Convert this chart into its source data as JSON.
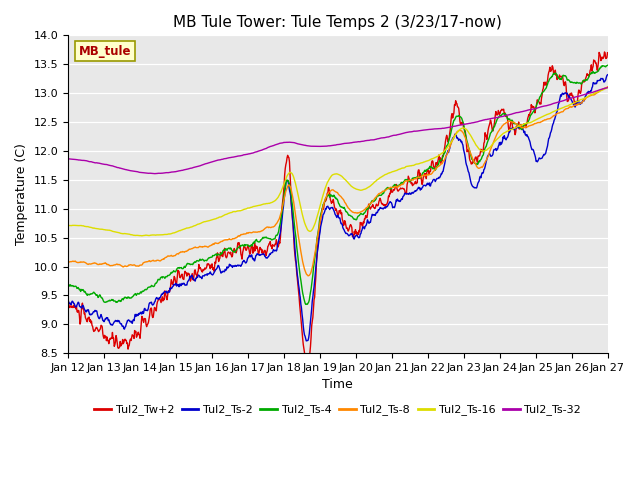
{
  "title": "MB Tule Tower: Tule Temps 2 (3/23/17-now)",
  "xlabel": "Time",
  "ylabel": "Temperature (C)",
  "ylim": [
    8.5,
    14.0
  ],
  "yticks": [
    8.5,
    9.0,
    9.5,
    10.0,
    10.5,
    11.0,
    11.5,
    12.0,
    12.5,
    13.0,
    13.5,
    14.0
  ],
  "xlim": [
    0,
    15
  ],
  "plot_bg_color": "#e8e8e8",
  "series": [
    {
      "label": "Tul2_Tw+2",
      "color": "#dd0000"
    },
    {
      "label": "Tul2_Ts-2",
      "color": "#0000cc"
    },
    {
      "label": "Tul2_Ts-4",
      "color": "#00aa00"
    },
    {
      "label": "Tul2_Ts-8",
      "color": "#ff8800"
    },
    {
      "label": "Tul2_Ts-16",
      "color": "#dddd00"
    },
    {
      "label": "Tul2_Ts-32",
      "color": "#aa00aa"
    }
  ],
  "xtick_labels": [
    "Jan 12",
    "Jan 13",
    "Jan 14",
    "Jan 15",
    "Jan 16",
    "Jan 17",
    "Jan 18",
    "Jan 19",
    "Jan 20",
    "Jan 21",
    "Jan 22",
    "Jan 23",
    "Jan 24",
    "Jan 25",
    "Jan 26",
    "Jan 27"
  ],
  "watermark_text": "MB_tule",
  "watermark_bg": "#ffffcc",
  "watermark_fg": "#aa0000",
  "watermark_border": "#999900"
}
